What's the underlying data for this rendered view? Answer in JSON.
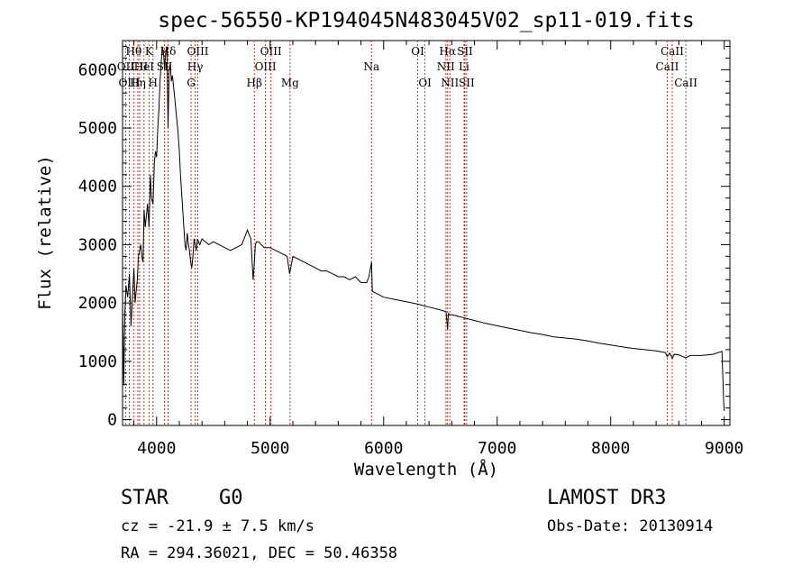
{
  "chart_data": {
    "type": "line",
    "title": "spec-56550-KP194045N483045V02_sp11-019.fits",
    "xlabel": "Wavelength (Å)",
    "ylabel": "Flux (relative)",
    "xlim": [
      3700,
      9050
    ],
    "ylim": [
      -100,
      6500
    ],
    "xticks": [
      4000,
      5000,
      6000,
      7000,
      8000,
      9000
    ],
    "yticks": [
      0,
      1000,
      2000,
      3000,
      4000,
      5000,
      6000
    ],
    "series": [
      {
        "name": "flux",
        "x": [
          3700,
          3710,
          3720,
          3730,
          3745,
          3760,
          3775,
          3790,
          3800,
          3810,
          3820,
          3830,
          3840,
          3850,
          3860,
          3870,
          3880,
          3890,
          3900,
          3910,
          3920,
          3933,
          3945,
          3955,
          3968,
          3980,
          3990,
          4000,
          4010,
          4020,
          4030,
          4040,
          4050,
          4060,
          4070,
          4080,
          4090,
          4101,
          4110,
          4120,
          4130,
          4140,
          4150,
          4160,
          4170,
          4180,
          4190,
          4200,
          4210,
          4220,
          4230,
          4240,
          4250,
          4260,
          4270,
          4280,
          4290,
          4300,
          4310,
          4320,
          4330,
          4340,
          4350,
          4360,
          4380,
          4400,
          4430,
          4460,
          4500,
          4550,
          4600,
          4650,
          4700,
          4750,
          4800,
          4830,
          4850,
          4861,
          4870,
          4880,
          4900,
          4920,
          4950,
          5000,
          5050,
          5100,
          5150,
          5172,
          5200,
          5250,
          5300,
          5350,
          5400,
          5450,
          5500,
          5550,
          5600,
          5650,
          5700,
          5750,
          5800,
          5850,
          5870,
          5893,
          5900,
          5950,
          6000,
          6100,
          6200,
          6300,
          6400,
          6500,
          6550,
          6563,
          6570,
          6580,
          6600,
          6700,
          6800,
          6900,
          7000,
          7100,
          7200,
          7300,
          7400,
          7500,
          7600,
          7700,
          7800,
          7900,
          8000,
          8100,
          8200,
          8300,
          8400,
          8480,
          8498,
          8520,
          8542,
          8560,
          8600,
          8662,
          8700,
          8800,
          8900,
          8980,
          8995,
          9000
        ],
        "values": [
          2000,
          600,
          1800,
          2300,
          2100,
          2500,
          1600,
          2200,
          2600,
          2000,
          2200,
          2400,
          2800,
          2900,
          3000,
          2800,
          2700,
          3600,
          3300,
          3500,
          3700,
          3300,
          4200,
          3800,
          3700,
          4400,
          4600,
          4500,
          5000,
          5300,
          5800,
          6100,
          6400,
          6300,
          6000,
          6300,
          6400,
          5000,
          6000,
          6100,
          5800,
          5900,
          5700,
          5500,
          5300,
          5100,
          4900,
          4600,
          4200,
          3900,
          3600,
          3300,
          3000,
          2900,
          3200,
          3000,
          2900,
          2700,
          2600,
          2800,
          3100,
          3000,
          2900,
          3100,
          3000,
          3100,
          3050,
          3000,
          3050,
          3000,
          2950,
          2900,
          2950,
          3000,
          3250,
          3100,
          2400,
          2700,
          3000,
          3050,
          3050,
          3000,
          2950,
          2950,
          2900,
          2850,
          2800,
          2500,
          2800,
          2750,
          2700,
          2650,
          2600,
          2550,
          2550,
          2500,
          2450,
          2450,
          2400,
          2450,
          2350,
          2350,
          2450,
          2700,
          2200,
          2150,
          2100,
          2060,
          2020,
          1980,
          1930,
          1880,
          1850,
          1550,
          1820,
          1800,
          1800,
          1750,
          1700,
          1650,
          1610,
          1570,
          1530,
          1490,
          1460,
          1420,
          1400,
          1380,
          1350,
          1310,
          1280,
          1250,
          1220,
          1200,
          1180,
          1150,
          1080,
          1140,
          1050,
          1120,
          1110,
          1060,
          1100,
          1100,
          1120,
          1170,
          300,
          150
        ]
      }
    ],
    "lines": [
      {
        "label": "Hθ",
        "wl": 3798,
        "row": 1
      },
      {
        "label": "Hη",
        "wl": 3835,
        "row": 3
      },
      {
        "label": "OII",
        "wl": 3727,
        "row": 2
      },
      {
        "label": "OIII",
        "wl": 3760,
        "row": 3
      },
      {
        "label": "CII",
        "wl": 3850,
        "row": 2
      },
      {
        "label": "HeI",
        "wl": 3889,
        "row": 2
      },
      {
        "label": "K",
        "wl": 3933,
        "row": 1
      },
      {
        "label": "H",
        "wl": 3968,
        "row": 3
      },
      {
        "label": "SII",
        "wl": 4070,
        "row": 2
      },
      {
        "label": "Hδ",
        "wl": 4101,
        "row": 1
      },
      {
        "label": "G",
        "wl": 4304,
        "row": 3
      },
      {
        "label": "Hγ",
        "wl": 4340,
        "row": 2
      },
      {
        "label": "OIII",
        "wl": 4363,
        "row": 1
      },
      {
        "label": "Hβ",
        "wl": 4861,
        "row": 3
      },
      {
        "label": "OIII",
        "wl": 4959,
        "row": 2
      },
      {
        "label": "OIII",
        "wl": 5007,
        "row": 1
      },
      {
        "label": "Mg",
        "wl": 5175,
        "row": 3
      },
      {
        "label": "Na",
        "wl": 5893,
        "row": 2
      },
      {
        "label": "OI",
        "wl": 6300,
        "row": 1
      },
      {
        "label": "OI",
        "wl": 6364,
        "row": 3
      },
      {
        "label": "NII",
        "wl": 6548,
        "row": 2
      },
      {
        "label": "Hα",
        "wl": 6563,
        "row": 1
      },
      {
        "label": "NII",
        "wl": 6583,
        "row": 3
      },
      {
        "label": "Li",
        "wl": 6708,
        "row": 2
      },
      {
        "label": "SII",
        "wl": 6716,
        "row": 1
      },
      {
        "label": "SII",
        "wl": 6731,
        "row": 3
      },
      {
        "label": "CaII",
        "wl": 8498,
        "row": 2
      },
      {
        "label": "CaII",
        "wl": 8542,
        "row": 1
      },
      {
        "label": "CaII",
        "wl": 8662,
        "row": 3
      }
    ]
  },
  "info": {
    "object_class": "STAR",
    "subclass": "G0",
    "survey": "LAMOST DR3",
    "cz": "cz = -21.9 ± 7.5 km/s",
    "obs_date": "Obs-Date: 20130914",
    "coords": "RA = 294.36021, DEC =  50.46358"
  }
}
